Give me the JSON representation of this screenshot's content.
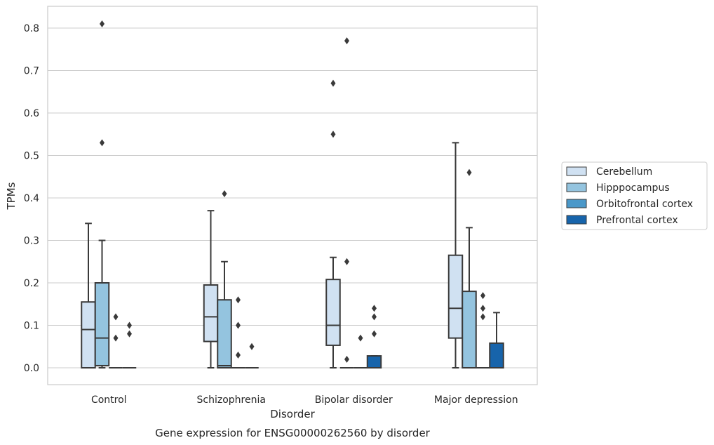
{
  "chart_data": {
    "type": "box",
    "title": "Gene expression for ENSG00000262560 by disorder",
    "xlabel": "Disorder",
    "ylabel": "TPMs",
    "ylim": [
      -0.04,
      0.85
    ],
    "yticks": [
      "0.0",
      "0.1",
      "0.2",
      "0.3",
      "0.4",
      "0.5",
      "0.6",
      "0.7",
      "0.8"
    ],
    "ytick_values": [
      0,
      0.1,
      0.2,
      0.3,
      0.4,
      0.5,
      0.6,
      0.7,
      0.8
    ],
    "categories": [
      "Control",
      "Schizophrenia",
      "Bipolar disorder",
      "Major depression"
    ],
    "grid": "horizontal",
    "legend_position": "right",
    "series": [
      {
        "name": "Cerebellum",
        "color": "#d0e1f2",
        "boxes": [
          {
            "min": 0.0,
            "q1": 0.0,
            "median": 0.09,
            "q3": 0.155,
            "max": 0.34,
            "outliers": []
          },
          {
            "min": 0.0,
            "q1": 0.062,
            "median": 0.12,
            "q3": 0.195,
            "max": 0.37,
            "outliers": []
          },
          {
            "min": 0.0,
            "q1": 0.053,
            "median": 0.1,
            "q3": 0.208,
            "max": 0.26,
            "outliers": [
              0.55,
              0.67
            ]
          },
          {
            "min": 0.0,
            "q1": 0.07,
            "median": 0.14,
            "q3": 0.265,
            "max": 0.53,
            "outliers": []
          }
        ]
      },
      {
        "name": "Hipppocampus",
        "color": "#94c4df",
        "boxes": [
          {
            "min": 0.0,
            "q1": 0.005,
            "median": 0.07,
            "q3": 0.2,
            "max": 0.3,
            "outliers": [
              0.53,
              0.81
            ]
          },
          {
            "min": 0.0,
            "q1": 0.0,
            "median": 0.005,
            "q3": 0.16,
            "max": 0.25,
            "outliers": [
              0.41
            ]
          },
          {
            "min": 0.0,
            "q1": 0.0,
            "median": 0.0,
            "q3": 0.0,
            "max": 0.0,
            "outliers": [
              0.02,
              0.25,
              0.77
            ]
          },
          {
            "min": 0.0,
            "q1": 0.0,
            "median": 0.0,
            "q3": 0.18,
            "max": 0.33,
            "outliers": [
              0.46
            ]
          }
        ]
      },
      {
        "name": "Orbitofrontal cortex",
        "color": "#4a98c9",
        "boxes": [
          {
            "min": 0.0,
            "q1": 0.0,
            "median": 0.0,
            "q3": 0.0,
            "max": 0.0,
            "outliers": [
              0.07,
              0.12
            ]
          },
          {
            "min": 0.0,
            "q1": 0.0,
            "median": 0.0,
            "q3": 0.0,
            "max": 0.0,
            "outliers": [
              0.03,
              0.1,
              0.16
            ]
          },
          {
            "min": 0.0,
            "q1": 0.0,
            "median": 0.0,
            "q3": 0.0,
            "max": 0.0,
            "outliers": [
              0.07
            ]
          },
          {
            "min": 0.0,
            "q1": 0.0,
            "median": 0.0,
            "q3": 0.0,
            "max": 0.0,
            "outliers": [
              0.12,
              0.14,
              0.17
            ]
          }
        ]
      },
      {
        "name": "Prefrontal cortex",
        "color": "#1764ab",
        "boxes": [
          {
            "min": 0.0,
            "q1": 0.0,
            "median": 0.0,
            "q3": 0.0,
            "max": 0.0,
            "outliers": [
              0.08,
              0.1
            ]
          },
          {
            "min": 0.0,
            "q1": 0.0,
            "median": 0.0,
            "q3": 0.0,
            "max": 0.0,
            "outliers": [
              0.05
            ]
          },
          {
            "min": 0.0,
            "q1": 0.0,
            "median": 0.0,
            "q3": 0.028,
            "max": 0.028,
            "outliers": [
              0.08,
              0.12,
              0.14
            ]
          },
          {
            "min": 0.0,
            "q1": 0.0,
            "median": 0.0,
            "q3": 0.058,
            "max": 0.13,
            "outliers": []
          }
        ]
      }
    ]
  }
}
